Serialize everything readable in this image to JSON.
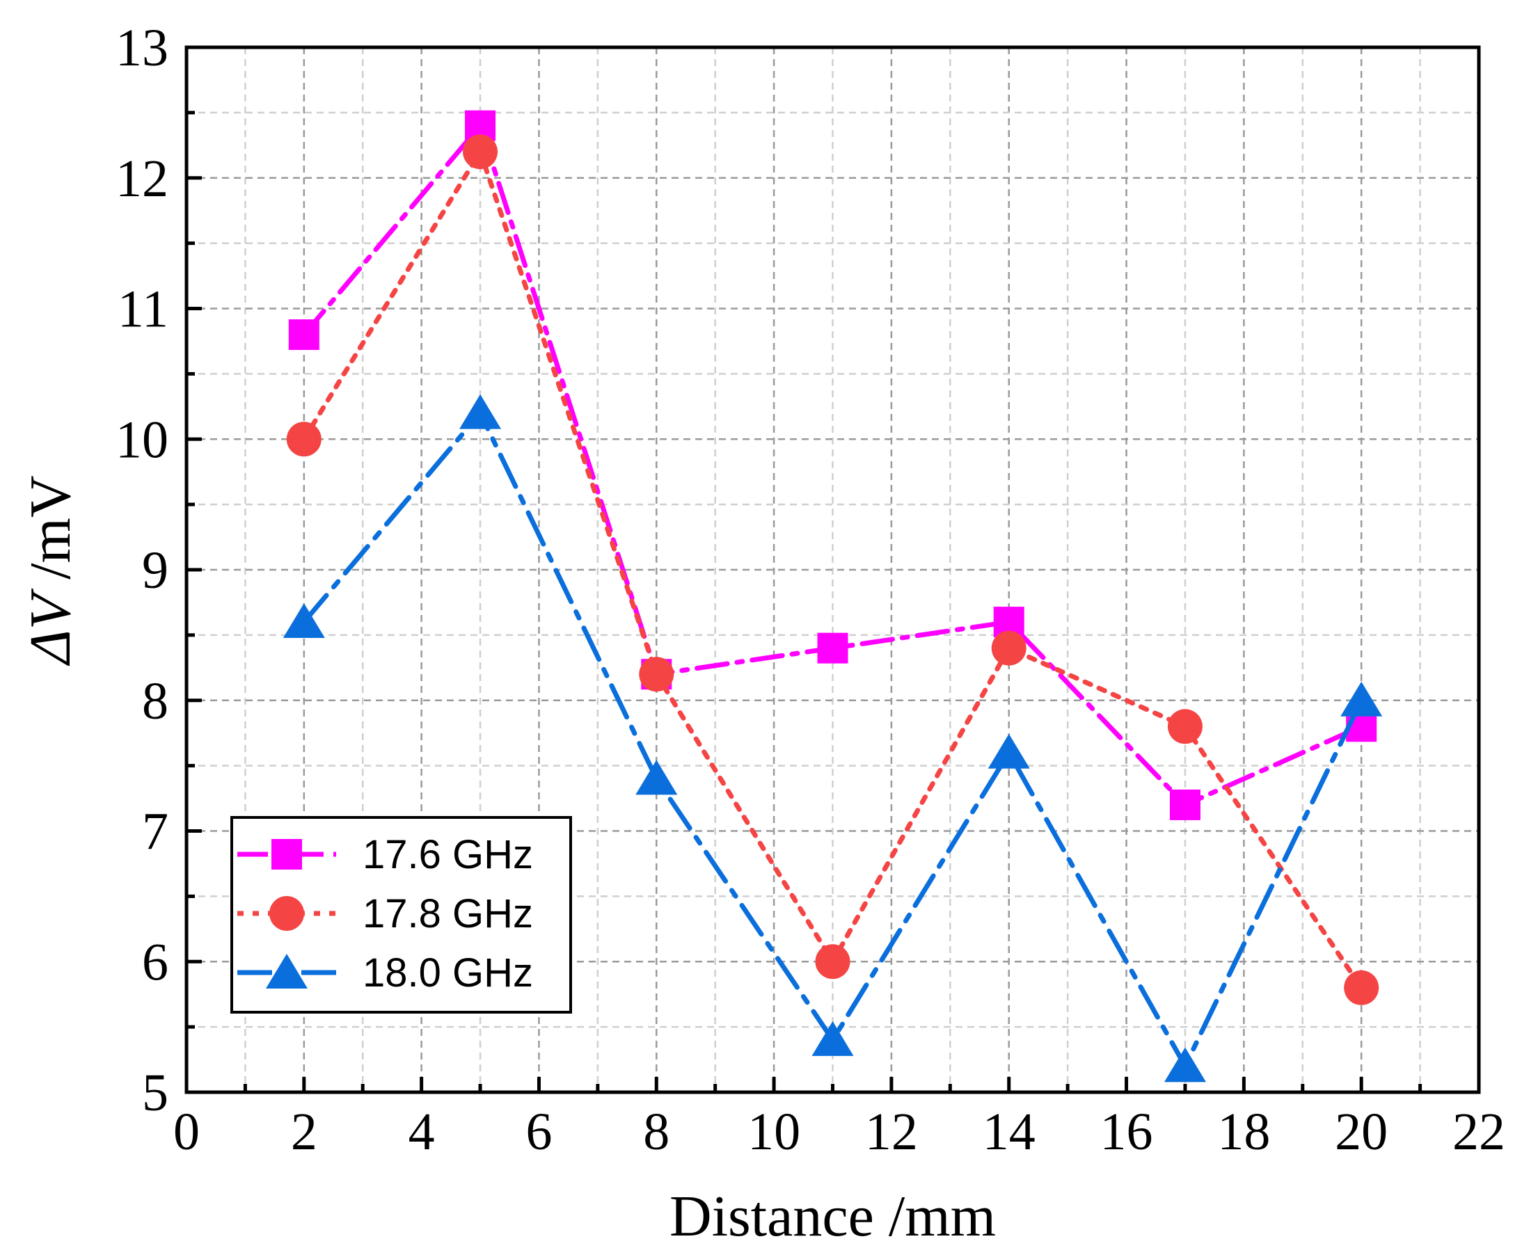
{
  "chart_data": {
    "type": "line",
    "title": "",
    "xlabel": "Distance /mm",
    "ylabel_symbol": "ΔV",
    "ylabel_unit": " /mV",
    "xlim": [
      0,
      22
    ],
    "ylim": [
      5,
      13
    ],
    "x_major_ticks": [
      0,
      2,
      4,
      6,
      8,
      10,
      12,
      14,
      16,
      18,
      20,
      22
    ],
    "y_major_ticks": [
      5,
      6,
      7,
      8,
      9,
      10,
      11,
      12,
      13
    ],
    "x_minor_step": 1,
    "y_minor_step": 0.5,
    "grid": true,
    "legend_position": "bottom-left",
    "x": [
      2,
      5,
      8,
      11,
      14,
      17,
      20
    ],
    "series": [
      {
        "name": "17.6 GHz",
        "marker": "square",
        "color": "#ff00ff",
        "linestyle": "dash-dot",
        "values": [
          10.8,
          12.4,
          8.2,
          8.4,
          8.6,
          7.2,
          7.8
        ]
      },
      {
        "name": "17.8 GHz",
        "marker": "circle",
        "color": "#f54444",
        "linestyle": "dot",
        "values": [
          10.0,
          12.2,
          8.2,
          6.0,
          8.4,
          7.8,
          5.8
        ]
      },
      {
        "name": "18.0 GHz",
        "marker": "triangle",
        "color": "#0a6fdc",
        "linestyle": "dash-dot-long",
        "values": [
          8.6,
          10.2,
          7.4,
          5.4,
          7.6,
          5.2,
          8.0
        ]
      }
    ]
  }
}
